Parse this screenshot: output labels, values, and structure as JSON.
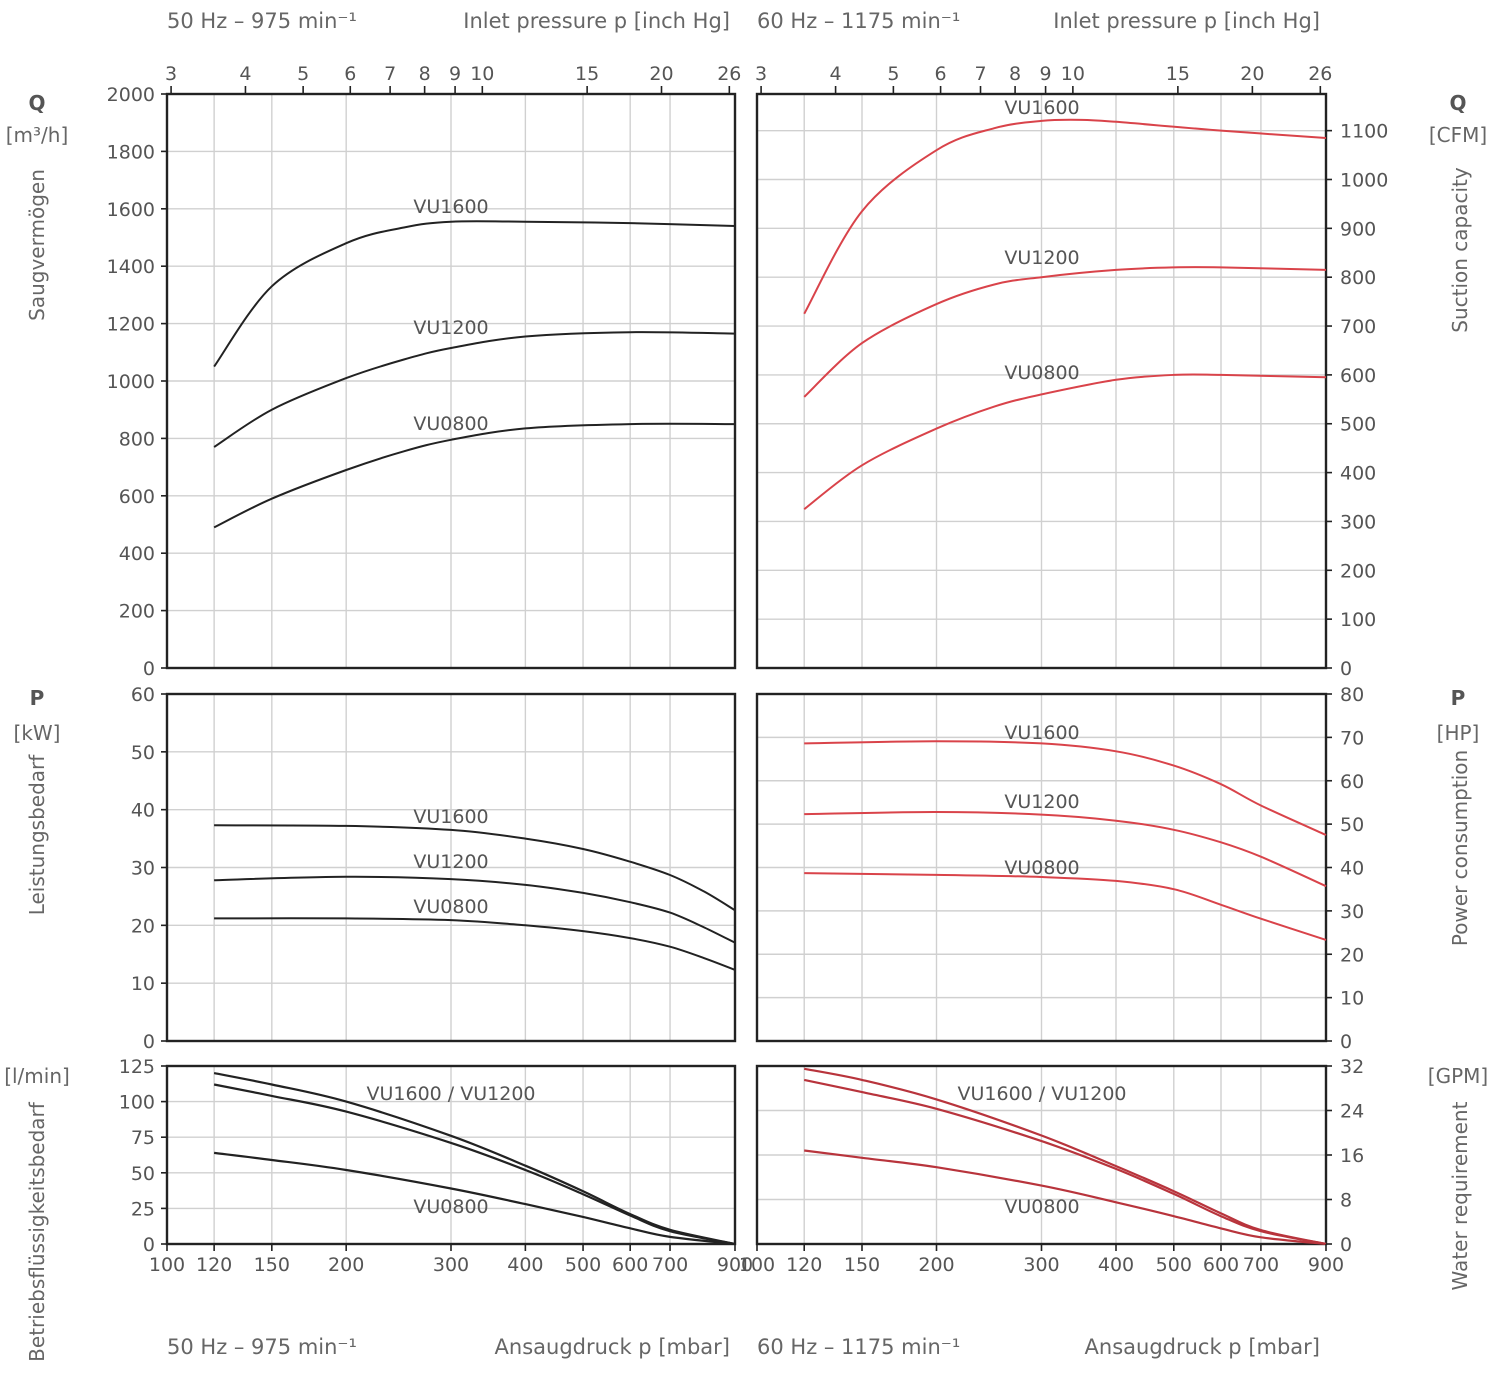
{
  "headers": {
    "left_top_left": "50 Hz – 975 min⁻¹",
    "left_top_right": "Inlet pressure p [inch Hg]",
    "right_top_left": "60 Hz – 1175 min⁻¹",
    "right_top_right": "Inlet pressure p [inch Hg]",
    "left_bottom_left": "50 Hz – 975 min⁻¹",
    "left_bottom_right": "Ansaugdruck p [mbar]",
    "right_bottom_left": "60 Hz – 1175 min⁻¹",
    "right_bottom_right": "Ansaugdruck p [mbar]"
  },
  "axis_labels": {
    "q_symbol": "Q",
    "q_unit_left": "[m³/h]",
    "q_unit_right": "[CFM]",
    "q_title_left": "Saugvermögen",
    "q_title_right": "Suction capacity",
    "p_symbol": "P",
    "p_unit_left": "[kW]",
    "p_unit_right": "[HP]",
    "p_title_left": "Leistungsbedarf",
    "p_title_right": "Power consumption",
    "w_unit_left": "[l/min]",
    "w_unit_right": "[GPM]",
    "w_title_left": "Betriebsflüssigkeitsbedarf",
    "w_title_right": "Water requirement"
  },
  "colors": {
    "series_50hz": "#222222",
    "series_60hz": "#d9434a",
    "water_60hz": "#b8343c",
    "grid": "#d0d0d0",
    "axis": "#222222"
  },
  "chart_data": [
    {
      "type": "line",
      "panel": "Q-50Hz",
      "xscale": "log",
      "x_ticks_mbar": [
        100,
        120,
        150,
        200,
        300,
        400,
        500,
        600,
        700,
        900
      ],
      "x_ticks_inHg": [
        3,
        4,
        5,
        6,
        7,
        8,
        9,
        10,
        15,
        20,
        26
      ],
      "xlim": [
        100,
        900
      ],
      "y_ticks": [
        0,
        200,
        400,
        600,
        800,
        1000,
        1200,
        1400,
        1600,
        1800,
        2000
      ],
      "ylim": [
        0,
        2000
      ],
      "series": [
        {
          "name": "VU1600",
          "x": [
            120,
            150,
            200,
            250,
            300,
            400,
            600,
            900
          ],
          "y": [
            1050,
            1330,
            1480,
            1535,
            1555,
            1555,
            1550,
            1540
          ]
        },
        {
          "name": "VU1200",
          "x": [
            120,
            150,
            200,
            250,
            300,
            400,
            600,
            900
          ],
          "y": [
            770,
            900,
            1010,
            1075,
            1115,
            1155,
            1170,
            1165
          ]
        },
        {
          "name": "VU0800",
          "x": [
            120,
            150,
            200,
            250,
            300,
            400,
            600,
            900
          ],
          "y": [
            490,
            590,
            690,
            755,
            795,
            835,
            850,
            850
          ]
        }
      ]
    },
    {
      "type": "line",
      "panel": "Q-60Hz",
      "xscale": "log",
      "xlim": [
        100,
        900
      ],
      "y_ticks": [
        0,
        100,
        200,
        300,
        400,
        500,
        600,
        700,
        800,
        900,
        1000,
        1100
      ],
      "ylim": [
        0,
        1175
      ],
      "series": [
        {
          "name": "VU1600",
          "x": [
            120,
            150,
            200,
            250,
            300,
            350,
            400,
            600,
            900
          ],
          "y": [
            725,
            935,
            1060,
            1105,
            1120,
            1122,
            1118,
            1100,
            1085
          ]
        },
        {
          "name": "VU1200",
          "x": [
            120,
            150,
            200,
            250,
            300,
            400,
            500,
            600,
            900
          ],
          "y": [
            555,
            665,
            745,
            785,
            800,
            815,
            820,
            820,
            815
          ]
        },
        {
          "name": "VU0800",
          "x": [
            120,
            150,
            200,
            250,
            300,
            400,
            500,
            600,
            900
          ],
          "y": [
            325,
            415,
            490,
            535,
            560,
            590,
            600,
            600,
            595
          ]
        }
      ]
    },
    {
      "type": "line",
      "panel": "P-50Hz",
      "xscale": "log",
      "xlim": [
        100,
        900
      ],
      "y_ticks": [
        0,
        10,
        20,
        30,
        40,
        50,
        60
      ],
      "ylim": [
        0,
        60
      ],
      "series": [
        {
          "name": "VU1600",
          "x": [
            120,
            200,
            300,
            400,
            500,
            600,
            700,
            800,
            900
          ],
          "y": [
            37.3,
            37.2,
            36.5,
            35.0,
            33.2,
            31.0,
            28.7,
            25.8,
            22.6
          ]
        },
        {
          "name": "VU1200",
          "x": [
            120,
            200,
            300,
            400,
            500,
            600,
            700,
            800,
            900
          ],
          "y": [
            27.8,
            28.4,
            28.0,
            27.0,
            25.6,
            24.0,
            22.2,
            19.6,
            17.0
          ]
        },
        {
          "name": "VU0800",
          "x": [
            120,
            200,
            300,
            400,
            500,
            600,
            700,
            800,
            900
          ],
          "y": [
            21.2,
            21.2,
            20.9,
            20.0,
            19.0,
            17.8,
            16.3,
            14.3,
            12.3
          ]
        }
      ]
    },
    {
      "type": "line",
      "panel": "P-60Hz",
      "xscale": "log",
      "xlim": [
        100,
        900
      ],
      "y_ticks": [
        0,
        10,
        20,
        30,
        40,
        50,
        60,
        70,
        80
      ],
      "ylim": [
        0,
        80
      ],
      "series": [
        {
          "name": "VU1600",
          "x": [
            120,
            200,
            300,
            400,
            500,
            600,
            700,
            900
          ],
          "y": [
            68.6,
            69.1,
            68.6,
            66.8,
            63.5,
            59.2,
            54.3,
            47.5
          ]
        },
        {
          "name": "VU1200",
          "x": [
            120,
            200,
            300,
            400,
            500,
            600,
            700,
            900
          ],
          "y": [
            52.3,
            52.8,
            52.2,
            50.8,
            48.7,
            45.8,
            42.5,
            35.7
          ]
        },
        {
          "name": "VU0800",
          "x": [
            120,
            200,
            300,
            400,
            500,
            600,
            700,
            900
          ],
          "y": [
            38.7,
            38.3,
            37.8,
            36.9,
            35.0,
            31.4,
            28.2,
            23.3
          ]
        }
      ]
    },
    {
      "type": "line",
      "panel": "W-50Hz",
      "xscale": "log",
      "xlim": [
        100,
        900
      ],
      "y_ticks": [
        0,
        25,
        50,
        75,
        100,
        125
      ],
      "ylim": [
        0,
        125
      ],
      "series": [
        {
          "name": "VU1600",
          "x": [
            120,
            150,
            200,
            300,
            400,
            500,
            600,
            700,
            900
          ],
          "y": [
            120,
            112,
            100,
            76,
            55,
            37,
            21,
            10,
            0
          ]
        },
        {
          "name": "VU1200",
          "x": [
            120,
            150,
            200,
            300,
            400,
            500,
            600,
            700,
            900
          ],
          "y": [
            112,
            104,
            93,
            71,
            52,
            35,
            20,
            9,
            0
          ]
        },
        {
          "name": "VU0800",
          "x": [
            120,
            150,
            200,
            300,
            400,
            500,
            600,
            700,
            900
          ],
          "y": [
            64,
            59,
            52,
            39,
            28,
            19,
            11,
            5,
            0
          ]
        }
      ]
    },
    {
      "type": "line",
      "panel": "W-60Hz",
      "xscale": "log",
      "xlim": [
        100,
        900
      ],
      "y_ticks": [
        0,
        8,
        16,
        24,
        32
      ],
      "ylim": [
        0,
        32
      ],
      "series": [
        {
          "name": "VU1600",
          "x": [
            120,
            150,
            200,
            300,
            400,
            500,
            600,
            700,
            900
          ],
          "y": [
            31.5,
            29.5,
            26.0,
            19.5,
            14.0,
            9.5,
            5.5,
            2.5,
            0
          ]
        },
        {
          "name": "VU1200",
          "x": [
            120,
            150,
            200,
            300,
            400,
            500,
            600,
            700,
            900
          ],
          "y": [
            29.5,
            27.3,
            24.3,
            18.5,
            13.5,
            9.0,
            5.0,
            2.3,
            0
          ]
        },
        {
          "name": "VU0800",
          "x": [
            120,
            150,
            200,
            300,
            400,
            500,
            600,
            700,
            900
          ],
          "y": [
            16.8,
            15.5,
            13.8,
            10.5,
            7.5,
            5.0,
            2.8,
            1.2,
            0
          ]
        }
      ]
    }
  ],
  "curve_labels": {
    "vu1600": "VU1600",
    "vu1200": "VU1200",
    "vu0800": "VU0800",
    "vu1600_1200": "VU1600 / VU1200"
  }
}
